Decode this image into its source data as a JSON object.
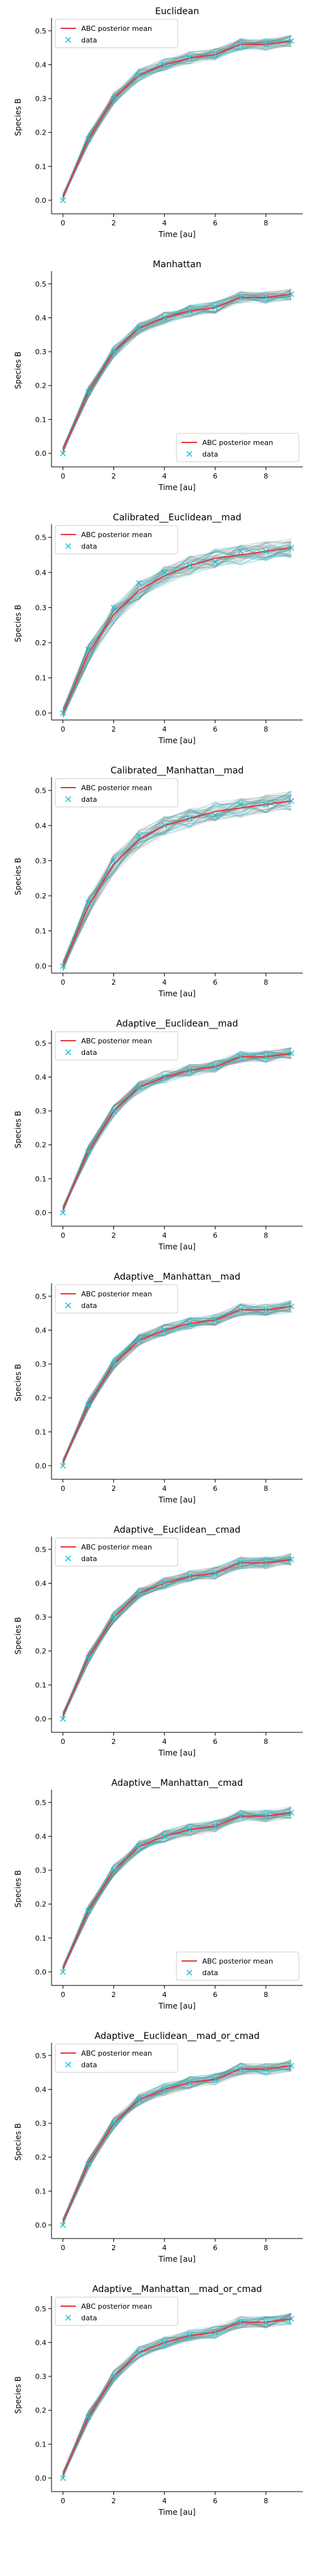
{
  "colors": {
    "posterior_mean": "#e8383a",
    "data_marker": "#17becf",
    "samples": "#808080",
    "axis": "#000000"
  },
  "chart_data": [
    {
      "type": "line",
      "title": "Euclidean",
      "xlabel": "Time [au]",
      "ylabel": "Species B",
      "xlim": [
        -0.45,
        9.45
      ],
      "ylim": [
        -0.04,
        0.53
      ],
      "xticks": [
        "0",
        "2",
        "4",
        "6",
        "8"
      ],
      "yticks": [
        "0.0",
        "0.1",
        "0.2",
        "0.3",
        "0.4",
        "0.5"
      ],
      "grid": false,
      "legend": "top-left",
      "x": [
        0,
        1,
        2,
        3,
        4,
        5,
        6,
        7,
        8,
        9
      ],
      "series": [
        {
          "name": "ABC posterior mean",
          "values": [
            0.01,
            0.18,
            0.3,
            0.37,
            0.4,
            0.42,
            0.43,
            0.46,
            0.46,
            0.47
          ]
        },
        {
          "name": "data",
          "values": [
            0.0,
            0.18,
            0.3,
            0.37,
            0.4,
            0.42,
            0.43,
            0.46,
            0.46,
            0.47
          ]
        }
      ]
    },
    {
      "type": "line",
      "title": "Manhattan",
      "xlabel": "Time [au]",
      "ylabel": "Species B",
      "xlim": [
        -0.45,
        9.45
      ],
      "ylim": [
        -0.04,
        0.53
      ],
      "xticks": [
        "0",
        "2",
        "4",
        "6",
        "8"
      ],
      "yticks": [
        "0.0",
        "0.1",
        "0.2",
        "0.3",
        "0.4",
        "0.5"
      ],
      "grid": false,
      "legend": "bottom-right",
      "x": [
        0,
        1,
        2,
        3,
        4,
        5,
        6,
        7,
        8,
        9
      ],
      "series": [
        {
          "name": "ABC posterior mean",
          "values": [
            0.01,
            0.18,
            0.3,
            0.37,
            0.4,
            0.42,
            0.43,
            0.46,
            0.46,
            0.47
          ]
        },
        {
          "name": "data",
          "values": [
            0.0,
            0.18,
            0.3,
            0.37,
            0.4,
            0.42,
            0.43,
            0.46,
            0.46,
            0.47
          ]
        }
      ]
    },
    {
      "type": "line",
      "title": "Calibrated__Euclidean__mad",
      "xlabel": "Time [au]",
      "ylabel": "Species B",
      "xlim": [
        -0.45,
        9.45
      ],
      "ylim": [
        -0.02,
        0.53
      ],
      "xticks": [
        "0",
        "2",
        "4",
        "6",
        "8"
      ],
      "yticks": [
        "0.0",
        "0.1",
        "0.2",
        "0.3",
        "0.4",
        "0.5"
      ],
      "grid": false,
      "legend": "top-left",
      "x": [
        0,
        1,
        2,
        3,
        4,
        5,
        6,
        7,
        8,
        9
      ],
      "series": [
        {
          "name": "ABC posterior mean",
          "values": [
            0.0,
            0.17,
            0.28,
            0.35,
            0.39,
            0.42,
            0.44,
            0.45,
            0.46,
            0.47
          ]
        },
        {
          "name": "data",
          "values": [
            0.0,
            0.18,
            0.3,
            0.37,
            0.4,
            0.42,
            0.43,
            0.46,
            0.46,
            0.47
          ]
        }
      ]
    },
    {
      "type": "line",
      "title": "Calibrated__Manhattan__mad",
      "xlabel": "Time [au]",
      "ylabel": "Species B",
      "xlim": [
        -0.45,
        9.45
      ],
      "ylim": [
        -0.02,
        0.53
      ],
      "xticks": [
        "0",
        "2",
        "4",
        "6",
        "8"
      ],
      "yticks": [
        "0.0",
        "0.1",
        "0.2",
        "0.3",
        "0.4",
        "0.5"
      ],
      "grid": false,
      "legend": "top-left",
      "x": [
        0,
        1,
        2,
        3,
        4,
        5,
        6,
        7,
        8,
        9
      ],
      "series": [
        {
          "name": "ABC posterior mean",
          "values": [
            0.0,
            0.17,
            0.29,
            0.36,
            0.4,
            0.42,
            0.44,
            0.45,
            0.46,
            0.47
          ]
        },
        {
          "name": "data",
          "values": [
            0.0,
            0.18,
            0.3,
            0.37,
            0.4,
            0.42,
            0.43,
            0.46,
            0.46,
            0.47
          ]
        }
      ]
    },
    {
      "type": "line",
      "title": "Adaptive__Euclidean__mad",
      "xlabel": "Time [au]",
      "ylabel": "Species B",
      "xlim": [
        -0.45,
        9.45
      ],
      "ylim": [
        -0.04,
        0.53
      ],
      "xticks": [
        "0",
        "2",
        "4",
        "6",
        "8"
      ],
      "yticks": [
        "0.0",
        "0.1",
        "0.2",
        "0.3",
        "0.4",
        "0.5"
      ],
      "grid": false,
      "legend": "top-left",
      "x": [
        0,
        1,
        2,
        3,
        4,
        5,
        6,
        7,
        8,
        9
      ],
      "series": [
        {
          "name": "ABC posterior mean",
          "values": [
            0.01,
            0.18,
            0.3,
            0.37,
            0.4,
            0.42,
            0.43,
            0.46,
            0.46,
            0.47
          ]
        },
        {
          "name": "data",
          "values": [
            0.0,
            0.18,
            0.3,
            0.37,
            0.4,
            0.42,
            0.43,
            0.46,
            0.46,
            0.47
          ]
        }
      ]
    },
    {
      "type": "line",
      "title": "Adaptive__Manhattan__mad",
      "xlabel": "Time [au]",
      "ylabel": "Species B",
      "xlim": [
        -0.45,
        9.45
      ],
      "ylim": [
        -0.04,
        0.53
      ],
      "xticks": [
        "0",
        "2",
        "4",
        "6",
        "8"
      ],
      "yticks": [
        "0.0",
        "0.1",
        "0.2",
        "0.3",
        "0.4",
        "0.5"
      ],
      "grid": false,
      "legend": "top-left",
      "x": [
        0,
        1,
        2,
        3,
        4,
        5,
        6,
        7,
        8,
        9
      ],
      "series": [
        {
          "name": "ABC posterior mean",
          "values": [
            0.01,
            0.18,
            0.3,
            0.37,
            0.4,
            0.42,
            0.43,
            0.46,
            0.46,
            0.47
          ]
        },
        {
          "name": "data",
          "values": [
            0.0,
            0.18,
            0.3,
            0.37,
            0.4,
            0.42,
            0.43,
            0.46,
            0.46,
            0.47
          ]
        }
      ]
    },
    {
      "type": "line",
      "title": "Adaptive__Euclidean__cmad",
      "xlabel": "Time [au]",
      "ylabel": "Species B",
      "xlim": [
        -0.45,
        9.45
      ],
      "ylim": [
        -0.04,
        0.53
      ],
      "xticks": [
        "0",
        "2",
        "4",
        "6",
        "8"
      ],
      "yticks": [
        "0.0",
        "0.1",
        "0.2",
        "0.3",
        "0.4",
        "0.5"
      ],
      "grid": false,
      "legend": "top-left",
      "x": [
        0,
        1,
        2,
        3,
        4,
        5,
        6,
        7,
        8,
        9
      ],
      "series": [
        {
          "name": "ABC posterior mean",
          "values": [
            0.01,
            0.18,
            0.3,
            0.37,
            0.4,
            0.42,
            0.43,
            0.46,
            0.46,
            0.47
          ]
        },
        {
          "name": "data",
          "values": [
            0.0,
            0.18,
            0.3,
            0.37,
            0.4,
            0.42,
            0.43,
            0.46,
            0.46,
            0.47
          ]
        }
      ]
    },
    {
      "type": "line",
      "title": "Adaptive__Manhattan__cmad",
      "xlabel": "Time [au]",
      "ylabel": "Species B",
      "xlim": [
        -0.45,
        9.45
      ],
      "ylim": [
        -0.04,
        0.53
      ],
      "xticks": [
        "0",
        "2",
        "4",
        "6",
        "8"
      ],
      "yticks": [
        "0.0",
        "0.1",
        "0.2",
        "0.3",
        "0.4",
        "0.5"
      ],
      "grid": false,
      "legend": "bottom-right",
      "x": [
        0,
        1,
        2,
        3,
        4,
        5,
        6,
        7,
        8,
        9
      ],
      "series": [
        {
          "name": "ABC posterior mean",
          "values": [
            0.01,
            0.18,
            0.3,
            0.37,
            0.4,
            0.42,
            0.43,
            0.46,
            0.46,
            0.47
          ]
        },
        {
          "name": "data",
          "values": [
            0.0,
            0.18,
            0.3,
            0.37,
            0.4,
            0.42,
            0.43,
            0.46,
            0.46,
            0.47
          ]
        }
      ]
    },
    {
      "type": "line",
      "title": "Adaptive__Euclidean__mad_or_cmad",
      "xlabel": "Time [au]",
      "ylabel": "Species B",
      "xlim": [
        -0.45,
        9.45
      ],
      "ylim": [
        -0.04,
        0.53
      ],
      "xticks": [
        "0",
        "2",
        "4",
        "6",
        "8"
      ],
      "yticks": [
        "0.0",
        "0.1",
        "0.2",
        "0.3",
        "0.4",
        "0.5"
      ],
      "grid": false,
      "legend": "top-left",
      "x": [
        0,
        1,
        2,
        3,
        4,
        5,
        6,
        7,
        8,
        9
      ],
      "series": [
        {
          "name": "ABC posterior mean",
          "values": [
            0.01,
            0.18,
            0.3,
            0.37,
            0.4,
            0.42,
            0.43,
            0.46,
            0.46,
            0.47
          ]
        },
        {
          "name": "data",
          "values": [
            0.0,
            0.18,
            0.3,
            0.37,
            0.4,
            0.42,
            0.43,
            0.46,
            0.46,
            0.47
          ]
        }
      ]
    },
    {
      "type": "line",
      "title": "Adaptive__Manhattan__mad_or_cmad",
      "xlabel": "Time [au]",
      "ylabel": "Species B",
      "xlim": [
        -0.45,
        9.45
      ],
      "ylim": [
        -0.04,
        0.53
      ],
      "xticks": [
        "0",
        "2",
        "4",
        "6",
        "8"
      ],
      "yticks": [
        "0.0",
        "0.1",
        "0.2",
        "0.3",
        "0.4",
        "0.5"
      ],
      "grid": false,
      "legend": "top-left",
      "x": [
        0,
        1,
        2,
        3,
        4,
        5,
        6,
        7,
        8,
        9
      ],
      "series": [
        {
          "name": "ABC posterior mean",
          "values": [
            0.01,
            0.18,
            0.3,
            0.37,
            0.4,
            0.42,
            0.43,
            0.46,
            0.46,
            0.47
          ]
        },
        {
          "name": "data",
          "values": [
            0.0,
            0.18,
            0.3,
            0.37,
            0.4,
            0.42,
            0.43,
            0.46,
            0.46,
            0.47
          ]
        }
      ]
    }
  ]
}
